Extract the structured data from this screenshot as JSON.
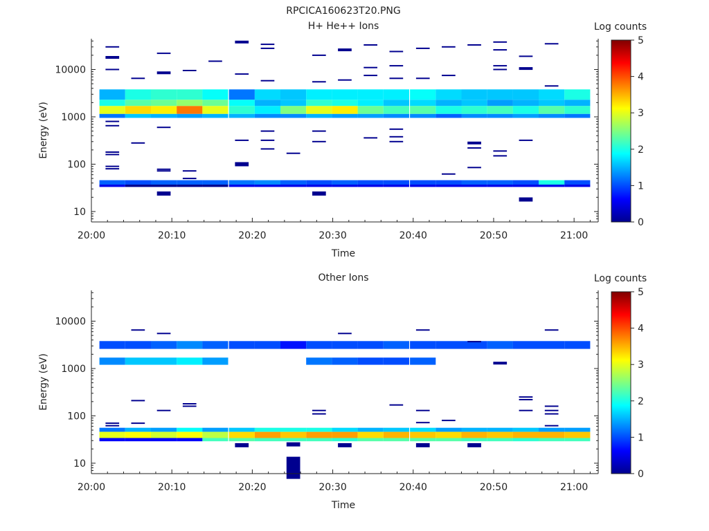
{
  "figure": {
    "title": "RPCICA160623T20.PNG"
  },
  "colormap": [
    "#00008f",
    "#0000ff",
    "#0080ff",
    "#00ffff",
    "#80ff80",
    "#ffff00",
    "#ff8000",
    "#ff0000",
    "#800000"
  ],
  "chart_data": [
    {
      "type": "heatmap",
      "title": "H+ He++ Ions",
      "xlabel": "Time",
      "ylabel": "Energy (eV)",
      "colorbar_label": "Log counts",
      "colorbar_ticks": [
        "0",
        "1",
        "2",
        "3",
        "4",
        "5"
      ],
      "xticks": [
        "20:00",
        "20:10",
        "20:20",
        "20:30",
        "20:40",
        "20:50",
        "21:00"
      ],
      "yticks": [
        "10",
        "100",
        "1000",
        "10000"
      ],
      "xlim_minutes": [
        0,
        63
      ],
      "ylim_log10": [
        0.78,
        4.65
      ],
      "y_scale": "log",
      "time_bins_minutes": [
        2.6,
        5.8,
        9.0,
        12.2,
        15.4,
        18.7,
        21.9,
        25.1,
        28.3,
        31.5,
        34.7,
        37.9,
        41.2,
        44.4,
        47.6,
        50.8,
        54.0,
        57.2,
        60.4
      ],
      "bands": [
        {
          "e0": 1150,
          "e1": 1700,
          "values": [
            3.0,
            3.3,
            3.2,
            3.8,
            3.0,
            2.1,
            1.8,
            2.5,
            3.0,
            3.2,
            2.4,
            2.2,
            2.3,
            2.0,
            2.1,
            2.2,
            2.0,
            2.3,
            2.1
          ]
        },
        {
          "e0": 1700,
          "e1": 2300,
          "values": [
            2.0,
            2.3,
            2.4,
            2.6,
            2.4,
            1.9,
            1.5,
            1.6,
            2.1,
            2.0,
            1.8,
            1.6,
            1.7,
            1.5,
            1.6,
            1.4,
            1.5,
            1.6,
            1.5
          ]
        },
        {
          "e0": 2300,
          "e1": 3800,
          "values": [
            1.5,
            2.0,
            2.1,
            2.1,
            1.9,
            1.2,
            1.7,
            1.6,
            1.8,
            1.8,
            1.8,
            1.8,
            1.9,
            1.7,
            1.6,
            1.6,
            1.6,
            1.7,
            2.0
          ]
        },
        {
          "e0": 950,
          "e1": 1150,
          "values": [
            1.2,
            1.6,
            1.5,
            1.4,
            1.5,
            1.5,
            1.3,
            1.3,
            1.5,
            1.4,
            1.4,
            1.3,
            1.3,
            1.1,
            1.3,
            1.3,
            1.4,
            1.3,
            1.2
          ]
        },
        {
          "e0": 37,
          "e1": 46,
          "values": [
            1.1,
            1.0,
            1.1,
            1.1,
            1.1,
            1.2,
            1.3,
            1.1,
            1.0,
            1.1,
            1.0,
            1.0,
            1.0,
            1.0,
            1.1,
            1.1,
            1.0,
            2.0,
            1.0
          ]
        },
        {
          "e0": 33,
          "e1": 37,
          "values": [
            0.5,
            0.0,
            0.0,
            0.0,
            0.0,
            0.5,
            0.5,
            0.5,
            0.5,
            0.5,
            0.5,
            0.5,
            0.5,
            0.5,
            0.5,
            0.5,
            0.5,
            0.5,
            0.5
          ]
        }
      ],
      "points": [
        {
          "t": 2.6,
          "e": 30000
        },
        {
          "t": 2.6,
          "e": 18000,
          "h": 2
        },
        {
          "t": 2.6,
          "e": 10000
        },
        {
          "t": 2.6,
          "e": 800
        },
        {
          "t": 2.6,
          "e": 650
        },
        {
          "t": 2.6,
          "e": 180
        },
        {
          "t": 2.6,
          "e": 160
        },
        {
          "t": 2.6,
          "e": 90
        },
        {
          "t": 2.6,
          "e": 80
        },
        {
          "t": 5.8,
          "e": 6500
        },
        {
          "t": 5.8,
          "e": 280
        },
        {
          "t": 9.0,
          "e": 22000
        },
        {
          "t": 9.0,
          "e": 8500,
          "h": 2
        },
        {
          "t": 9.0,
          "e": 600
        },
        {
          "t": 9.0,
          "e": 78
        },
        {
          "t": 9.0,
          "e": 72
        },
        {
          "t": 9.0,
          "e": 24,
          "h": 3
        },
        {
          "t": 12.2,
          "e": 9500
        },
        {
          "t": 12.2,
          "e": 72
        },
        {
          "t": 12.2,
          "e": 50
        },
        {
          "t": 15.4,
          "e": 15000
        },
        {
          "t": 18.7,
          "e": 38000,
          "h": 2
        },
        {
          "t": 18.7,
          "e": 8000
        },
        {
          "t": 18.7,
          "e": 320
        },
        {
          "t": 18.7,
          "e": 100,
          "h": 3
        },
        {
          "t": 21.9,
          "e": 34000
        },
        {
          "t": 21.9,
          "e": 28000
        },
        {
          "t": 21.9,
          "e": 5800
        },
        {
          "t": 21.9,
          "e": 500
        },
        {
          "t": 21.9,
          "e": 320
        },
        {
          "t": 21.9,
          "e": 210
        },
        {
          "t": 25.1,
          "e": 170
        },
        {
          "t": 28.3,
          "e": 20000
        },
        {
          "t": 28.3,
          "e": 5500
        },
        {
          "t": 28.3,
          "e": 500
        },
        {
          "t": 28.3,
          "e": 300
        },
        {
          "t": 28.3,
          "e": 24,
          "h": 3
        },
        {
          "t": 31.5,
          "e": 26000,
          "h": 2
        },
        {
          "t": 31.5,
          "e": 6000
        },
        {
          "t": 34.7,
          "e": 33000
        },
        {
          "t": 34.7,
          "e": 11000
        },
        {
          "t": 34.7,
          "e": 7500
        },
        {
          "t": 34.7,
          "e": 360
        },
        {
          "t": 37.9,
          "e": 24000
        },
        {
          "t": 37.9,
          "e": 12000
        },
        {
          "t": 37.9,
          "e": 6500
        },
        {
          "t": 37.9,
          "e": 550
        },
        {
          "t": 37.9,
          "e": 380
        },
        {
          "t": 37.9,
          "e": 300
        },
        {
          "t": 41.2,
          "e": 28000
        },
        {
          "t": 41.2,
          "e": 6500
        },
        {
          "t": 44.4,
          "e": 30000
        },
        {
          "t": 44.4,
          "e": 7500
        },
        {
          "t": 44.4,
          "e": 62
        },
        {
          "t": 47.6,
          "e": 33000
        },
        {
          "t": 47.6,
          "e": 280,
          "h": 2
        },
        {
          "t": 47.6,
          "e": 220
        },
        {
          "t": 47.6,
          "e": 85
        },
        {
          "t": 50.8,
          "e": 38000
        },
        {
          "t": 50.8,
          "e": 26000
        },
        {
          "t": 50.8,
          "e": 12000
        },
        {
          "t": 50.8,
          "e": 10000
        },
        {
          "t": 50.8,
          "e": 190
        },
        {
          "t": 50.8,
          "e": 150
        },
        {
          "t": 54.0,
          "e": 19000
        },
        {
          "t": 54.0,
          "e": 10500,
          "h": 2
        },
        {
          "t": 54.0,
          "e": 320
        },
        {
          "t": 54.0,
          "e": 18,
          "h": 3
        },
        {
          "t": 57.2,
          "e": 35000
        },
        {
          "t": 57.2,
          "e": 4500
        }
      ]
    },
    {
      "type": "heatmap",
      "title": "Other Ions",
      "xlabel": "Time",
      "ylabel": "Energy (eV)",
      "colorbar_label": "Log counts",
      "colorbar_ticks": [
        "0",
        "1",
        "2",
        "3",
        "4",
        "5"
      ],
      "xticks": [
        "20:00",
        "20:10",
        "20:20",
        "20:30",
        "20:40",
        "20:50",
        "21:00"
      ],
      "yticks": [
        "10",
        "100",
        "1000",
        "10000"
      ],
      "xlim_minutes": [
        0,
        63
      ],
      "ylim_log10": [
        0.78,
        4.65
      ],
      "y_scale": "log",
      "time_bins_minutes": [
        2.6,
        5.8,
        9.0,
        12.2,
        15.4,
        18.7,
        21.9,
        25.1,
        28.3,
        31.5,
        34.7,
        37.9,
        41.2,
        44.4,
        47.6,
        50.8,
        54.0,
        57.2,
        60.4
      ],
      "bands": [
        {
          "e0": 34,
          "e1": 46,
          "values": [
            3.0,
            3.1,
            2.9,
            3.1,
            2.8,
            3.3,
            3.6,
            3.4,
            3.6,
            3.6,
            3.3,
            3.5,
            3.4,
            3.3,
            3.5,
            3.4,
            3.5,
            3.5,
            3.4
          ]
        },
        {
          "e0": 46,
          "e1": 56,
          "values": [
            1.2,
            1.5,
            1.4,
            1.9,
            1.4,
            1.6,
            2.0,
            2.0,
            2.0,
            1.7,
            1.5,
            1.6,
            1.7,
            1.4,
            1.5,
            1.5,
            1.6,
            1.4,
            1.4
          ]
        },
        {
          "e0": 29,
          "e1": 34,
          "values": [
            0.6,
            0.6,
            0.6,
            0.6,
            2.2,
            2.3,
            2.2,
            2.2,
            2.2,
            2.1,
            2.3,
            2.3,
            2.3,
            2.3,
            2.2,
            2.2,
            2.1,
            2.2,
            2.2
          ]
        },
        {
          "e0": 2600,
          "e1": 3800,
          "values": [
            1.0,
            1.0,
            1.1,
            1.3,
            1.1,
            1.0,
            1.0,
            0.7,
            1.0,
            1.0,
            1.0,
            1.1,
            1.0,
            1.0,
            1.0,
            1.1,
            1.0,
            1.0,
            1.0
          ]
        },
        {
          "e0": 1200,
          "e1": 1700,
          "values": [
            1.3,
            1.6,
            1.6,
            1.8,
            1.4,
            -1,
            -1,
            -1,
            1.2,
            1.1,
            1.0,
            1.0,
            1.1,
            -1,
            -1,
            -1,
            -1,
            -1,
            -1
          ]
        }
      ],
      "points": [
        {
          "t": 2.6,
          "e": 70
        },
        {
          "t": 2.6,
          "e": 62
        },
        {
          "t": 5.8,
          "e": 6500
        },
        {
          "t": 5.8,
          "e": 210
        },
        {
          "t": 5.8,
          "e": 70
        },
        {
          "t": 9.0,
          "e": 5500
        },
        {
          "t": 9.0,
          "e": 130
        },
        {
          "t": 12.2,
          "e": 180
        },
        {
          "t": 12.2,
          "e": 160
        },
        {
          "t": 18.7,
          "e": 24,
          "h": 3
        },
        {
          "t": 25.1,
          "e": 25,
          "h": 3
        },
        {
          "t": 25.1,
          "e": 8,
          "h": 16
        },
        {
          "t": 28.3,
          "e": 130
        },
        {
          "t": 28.3,
          "e": 110
        },
        {
          "t": 31.5,
          "e": 5500
        },
        {
          "t": 31.5,
          "e": 24,
          "h": 3
        },
        {
          "t": 37.9,
          "e": 170
        },
        {
          "t": 41.2,
          "e": 6500
        },
        {
          "t": 41.2,
          "e": 130
        },
        {
          "t": 41.2,
          "e": 72
        },
        {
          "t": 41.2,
          "e": 24,
          "h": 3
        },
        {
          "t": 44.4,
          "e": 80
        },
        {
          "t": 47.6,
          "e": 3700
        },
        {
          "t": 47.6,
          "e": 24,
          "h": 3
        },
        {
          "t": 50.8,
          "e": 1300,
          "h": 2
        },
        {
          "t": 54.0,
          "e": 250
        },
        {
          "t": 54.0,
          "e": 220
        },
        {
          "t": 54.0,
          "e": 130
        },
        {
          "t": 57.2,
          "e": 6500
        },
        {
          "t": 57.2,
          "e": 160
        },
        {
          "t": 57.2,
          "e": 130
        },
        {
          "t": 57.2,
          "e": 110
        },
        {
          "t": 57.2,
          "e": 62
        }
      ]
    }
  ]
}
